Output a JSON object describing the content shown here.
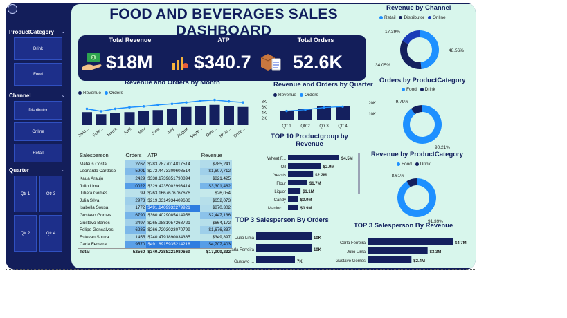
{
  "title": "FOOD AND BEVERAGES SALES DASHBOARD",
  "colors": {
    "navy": "#131e5a",
    "bar": "#14205e",
    "accent": "#1e90ff",
    "panel": "#d8f6ec"
  },
  "slicers": {
    "category": {
      "title": "ProductCategory",
      "items": [
        "Drink",
        "Food"
      ]
    },
    "channel": {
      "title": "Channel",
      "items": [
        "Distributor",
        "Online",
        "Retail"
      ]
    },
    "quarter": {
      "title": "Quarter",
      "items": [
        "Qtr 1",
        "Qtr 3",
        "Qtr 2",
        "Qtr 4"
      ]
    }
  },
  "kpis": [
    {
      "label": "Total Revenue",
      "value": "$18M",
      "icon": "money-hand-icon"
    },
    {
      "label": "ATP",
      "value": "$340.7",
      "icon": "coins-chart-icon"
    },
    {
      "label": "Total Orders",
      "value": "52.6K",
      "icon": "order-box-icon"
    }
  ],
  "legend_labels": {
    "revenue": "Revenue",
    "orders": "Orders",
    "retail": "Retail",
    "distributor": "Distributor",
    "online": "Online",
    "food": "Food",
    "drink": "Drink"
  },
  "table": {
    "headers": [
      "Salesperson",
      "Orders",
      "ATP",
      "Revenue"
    ],
    "rows": [
      [
        "Mateus Costa",
        "2767",
        "$283.7877014817514",
        "$785,241"
      ],
      [
        "Leonardo Cardoso",
        "5901",
        "$272.4473309608514",
        "$1,607,712"
      ],
      [
        "Kaua Araujo",
        "2429",
        "$338.1739851790894",
        "$821,425"
      ],
      [
        "Julio Lima",
        "10022",
        "$329.4235002993414",
        "$3,301,482"
      ],
      [
        "Julieta Gomes",
        "99",
        "$263.1667676767676",
        "$26,054"
      ],
      [
        "Julia Silva",
        "2973",
        "$219.3314934409686",
        "$652,073"
      ],
      [
        "Isabella Sousa",
        "1772",
        "$491.1409932279921",
        "$870,302"
      ],
      [
        "Gustavo Gomes",
        "6790",
        "$360.4029085414958",
        "$2,447,136"
      ],
      [
        "Gustavo Barros",
        "2497",
        "$265.9881057268721",
        "$664,172"
      ],
      [
        "Felipe Goncalves",
        "6285",
        "$266.7203023070799",
        "$1,676,337"
      ],
      [
        "Estevan Souza",
        "1455",
        "$240.4791890034365",
        "$349,897"
      ],
      [
        "Carla Ferreira",
        "9570",
        "$491.8915935214218",
        "$4,707,403"
      ]
    ],
    "total": [
      "Total",
      "52560",
      "$340.7388221080669",
      "$17,909,232"
    ]
  },
  "chart_data": [
    {
      "type": "bar",
      "title": "Revenue and Orders by Month",
      "categories": [
        "Janu...",
        "Febr...",
        "March",
        "April",
        "May",
        "June",
        "July",
        "August",
        "Septe...",
        "Octo...",
        "Nove...",
        "Dece..."
      ],
      "series": [
        {
          "name": "Revenue",
          "values": [
            1.25,
            1.05,
            1.2,
            1.25,
            1.4,
            1.45,
            1.6,
            1.75,
            1.85,
            1.95,
            1.8,
            1.75
          ]
        },
        {
          "name": "Orders",
          "values": [
            3.3,
            2.8,
            3.3,
            3.6,
            3.8,
            4.1,
            4.3,
            4.6,
            4.9,
            5.1,
            4.8,
            4.6
          ]
        }
      ]
    },
    {
      "type": "bar",
      "title": "Revenue and Orders by Quarter",
      "categories": [
        "Qtr 1",
        "Qtr 2",
        "Qtr 3",
        "Qtr 4"
      ],
      "left_ticks": [
        "8K",
        "6K",
        "4K",
        "2K"
      ],
      "right_ticks": [
        "20K",
        "10K"
      ],
      "series": [
        {
          "name": "Revenue",
          "values": [
            3.4,
            4.1,
            5.2,
            5.2
          ]
        },
        {
          "name": "Orders",
          "values": [
            10500,
            12000,
            14500,
            15500
          ]
        }
      ]
    },
    {
      "type": "bar",
      "title": "TOP 10 Productgroup by Revenue",
      "categories": [
        "Wheat F...",
        "Oil",
        "Yeasts",
        "Flour",
        "Liquor",
        "Candy",
        "Manioc ..."
      ],
      "values": [
        4.5,
        2.9,
        2.2,
        1.7,
        1.1,
        0.9,
        0.9
      ],
      "labels": [
        "$4.5M",
        "$2.9M",
        "$2.2M",
        "$1.7M",
        "$1.1M",
        "$0.9M",
        "$0.9M"
      ]
    },
    {
      "type": "bar",
      "title": "TOP 3 Salesperson By Orders",
      "categories": [
        "Julio Lima",
        "Carla Ferreira",
        "Gustavo ..."
      ],
      "values": [
        10,
        10,
        7
      ],
      "labels": [
        "10K",
        "10K",
        "7K"
      ]
    },
    {
      "type": "bar",
      "title": "TOP 3 Salesperson By Revenue",
      "categories": [
        "Carla Ferreira",
        "Julio Lima",
        "Gustavo Gomes"
      ],
      "values": [
        4.7,
        3.3,
        2.4
      ],
      "labels": [
        "$4.7M",
        "$3.3M",
        "$2.4M"
      ]
    },
    {
      "type": "pie",
      "title": "Revenue by Channel",
      "labels": [
        "Retail",
        "Distributor",
        "Online"
      ],
      "values": [
        48.56,
        34.05,
        17.39
      ],
      "value_labels": [
        "48.56%",
        "34.05%",
        "17.39%"
      ],
      "colors": [
        "#1e90ff",
        "#14205e",
        "#1a3cb8"
      ]
    },
    {
      "type": "pie",
      "title": "Orders by ProductCategory",
      "labels": [
        "Food",
        "Drink"
      ],
      "values": [
        90.21,
        9.79
      ],
      "value_labels": [
        "90.21%",
        "9.79%"
      ],
      "colors": [
        "#1e90ff",
        "#14205e"
      ]
    },
    {
      "type": "pie",
      "title": "Revenue by ProductCategory",
      "labels": [
        "Food",
        "Drink"
      ],
      "values": [
        91.39,
        8.61
      ],
      "value_labels": [
        "91.39%",
        "8.61%"
      ],
      "colors": [
        "#1e90ff",
        "#14205e"
      ]
    }
  ]
}
